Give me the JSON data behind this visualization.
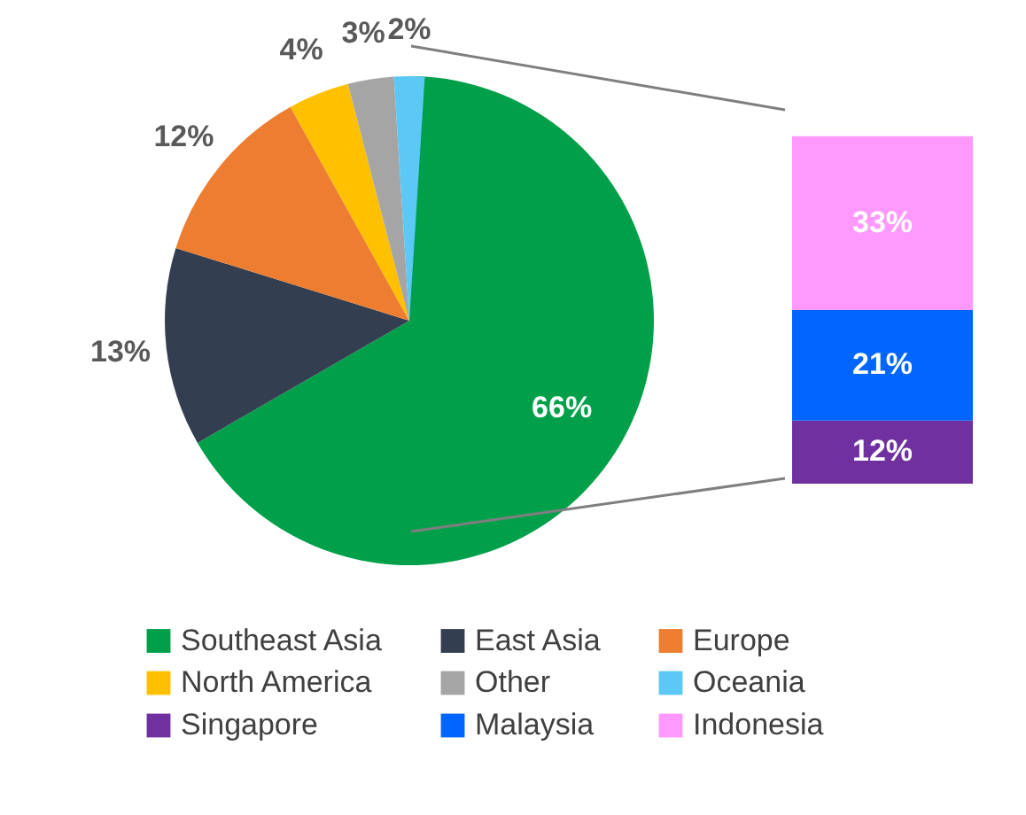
{
  "chart_data": [
    {
      "type": "pie",
      "categories": [
        "Southeast Asia",
        "East Asia",
        "Europe",
        "North America",
        "Other",
        "Oceania"
      ],
      "values": [
        66,
        13,
        12,
        4,
        3,
        2
      ],
      "colors": [
        "#00a04a",
        "#333f50",
        "#ed7d31",
        "#ffc000",
        "#a5a5a5",
        "#5bc8f5"
      ],
      "value_labels": [
        "66%",
        "13%",
        "12%",
        "4%",
        "3%",
        "2%"
      ],
      "legend": "bottom"
    },
    {
      "type": "bar",
      "stacked": true,
      "categories": [
        null
      ],
      "tick_labels": false,
      "legend": "bottom",
      "series": [
        {
          "name": "Singapore",
          "color": "#7030a0",
          "values": [
            12
          ],
          "value_labels": [
            "12%"
          ]
        },
        {
          "name": "Malaysia",
          "color": "#0066ff",
          "values": [
            21
          ],
          "value_labels": [
            "21%"
          ]
        },
        {
          "name": "Indonesia",
          "color": "#ff99ff",
          "values": [
            33
          ],
          "value_labels": [
            "33%"
          ]
        }
      ]
    }
  ]
}
